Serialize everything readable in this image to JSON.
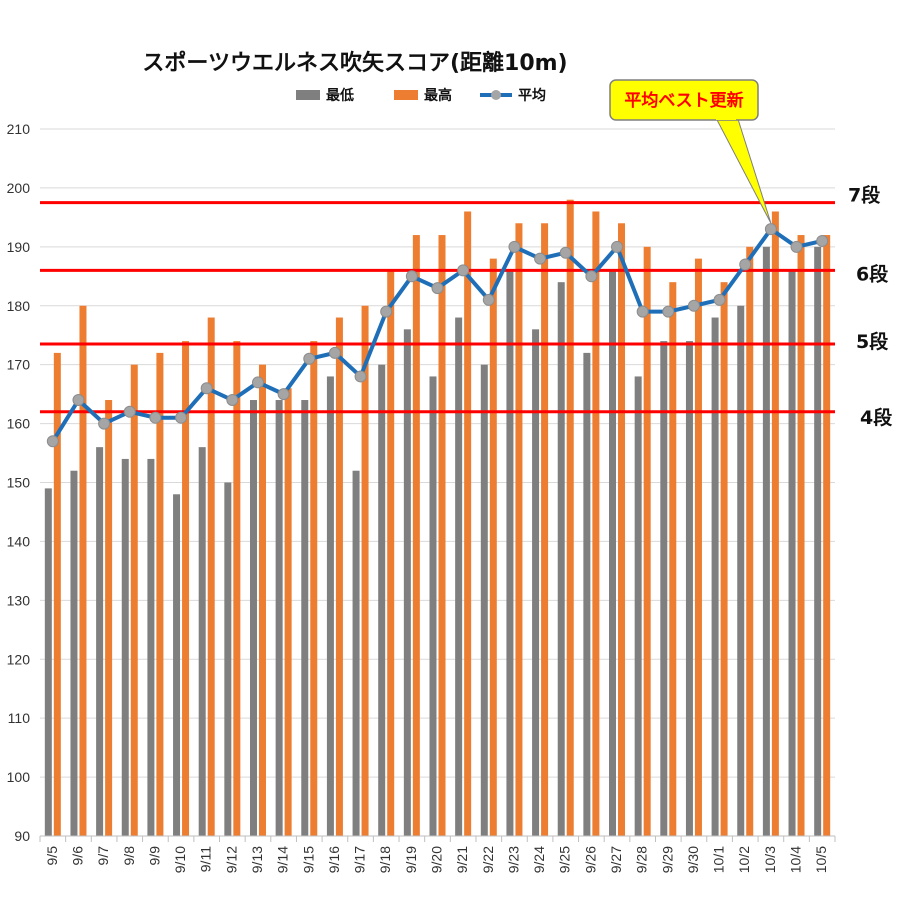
{
  "chart_data": {
    "type": "bar",
    "title": "スポーツウエルネス吹矢スコア(距離10m)",
    "xlabel": "",
    "ylabel": "",
    "ylim": [
      90,
      210
    ],
    "yticks": [
      90,
      100,
      110,
      120,
      130,
      140,
      150,
      160,
      170,
      180,
      190,
      200,
      210
    ],
    "grid": true,
    "legend_position": "top",
    "categories": [
      "9/5",
      "9/6",
      "9/7",
      "9/8",
      "9/9",
      "9/10",
      "9/11",
      "9/12",
      "9/13",
      "9/14",
      "9/15",
      "9/16",
      "9/17",
      "9/18",
      "9/19",
      "9/20",
      "9/21",
      "9/22",
      "9/23",
      "9/24",
      "9/25",
      "9/26",
      "9/27",
      "9/28",
      "9/29",
      "9/30",
      "10/1",
      "10/2",
      "10/3",
      "10/4",
      "10/5"
    ],
    "series": [
      {
        "name": "最低",
        "type": "bar",
        "color": "#7f7f7f",
        "values": [
          149,
          152,
          156,
          154,
          154,
          148,
          156,
          150,
          164,
          164,
          164,
          168,
          152,
          170,
          176,
          168,
          178,
          170,
          186,
          176,
          184,
          172,
          186,
          168,
          174,
          174,
          178,
          180,
          190,
          186,
          190
        ]
      },
      {
        "name": "最高",
        "type": "bar",
        "color": "#ed7d31",
        "values": [
          172,
          180,
          164,
          170,
          172,
          174,
          178,
          174,
          170,
          166,
          174,
          178,
          180,
          186,
          192,
          192,
          196,
          188,
          194,
          194,
          198,
          196,
          194,
          190,
          184,
          188,
          184,
          190,
          196,
          192,
          192
        ]
      },
      {
        "name": "平均",
        "type": "line",
        "color": "#1f6fb8",
        "marker_color": "#a5a5a5",
        "values": [
          157,
          164,
          160,
          162,
          161,
          161,
          166,
          164,
          167,
          165,
          171,
          172,
          168,
          179,
          185,
          183,
          186,
          181,
          190,
          188,
          189,
          185,
          190,
          179,
          179,
          180,
          181,
          187,
          193,
          190,
          191
        ]
      }
    ],
    "reference_lines": [
      {
        "label": "4段",
        "value": 162,
        "color": "#ff0000"
      },
      {
        "label": "5段",
        "value": 173.5,
        "color": "#ff0000"
      },
      {
        "label": "6段",
        "value": 186,
        "color": "#ff0000"
      },
      {
        "label": "7段",
        "value": 197.5,
        "color": "#ff0000"
      }
    ],
    "annotation": {
      "text": "平均ベスト更新",
      "target_category": "10/3",
      "fill": "#ffff00",
      "text_color": "#ff0000"
    }
  }
}
